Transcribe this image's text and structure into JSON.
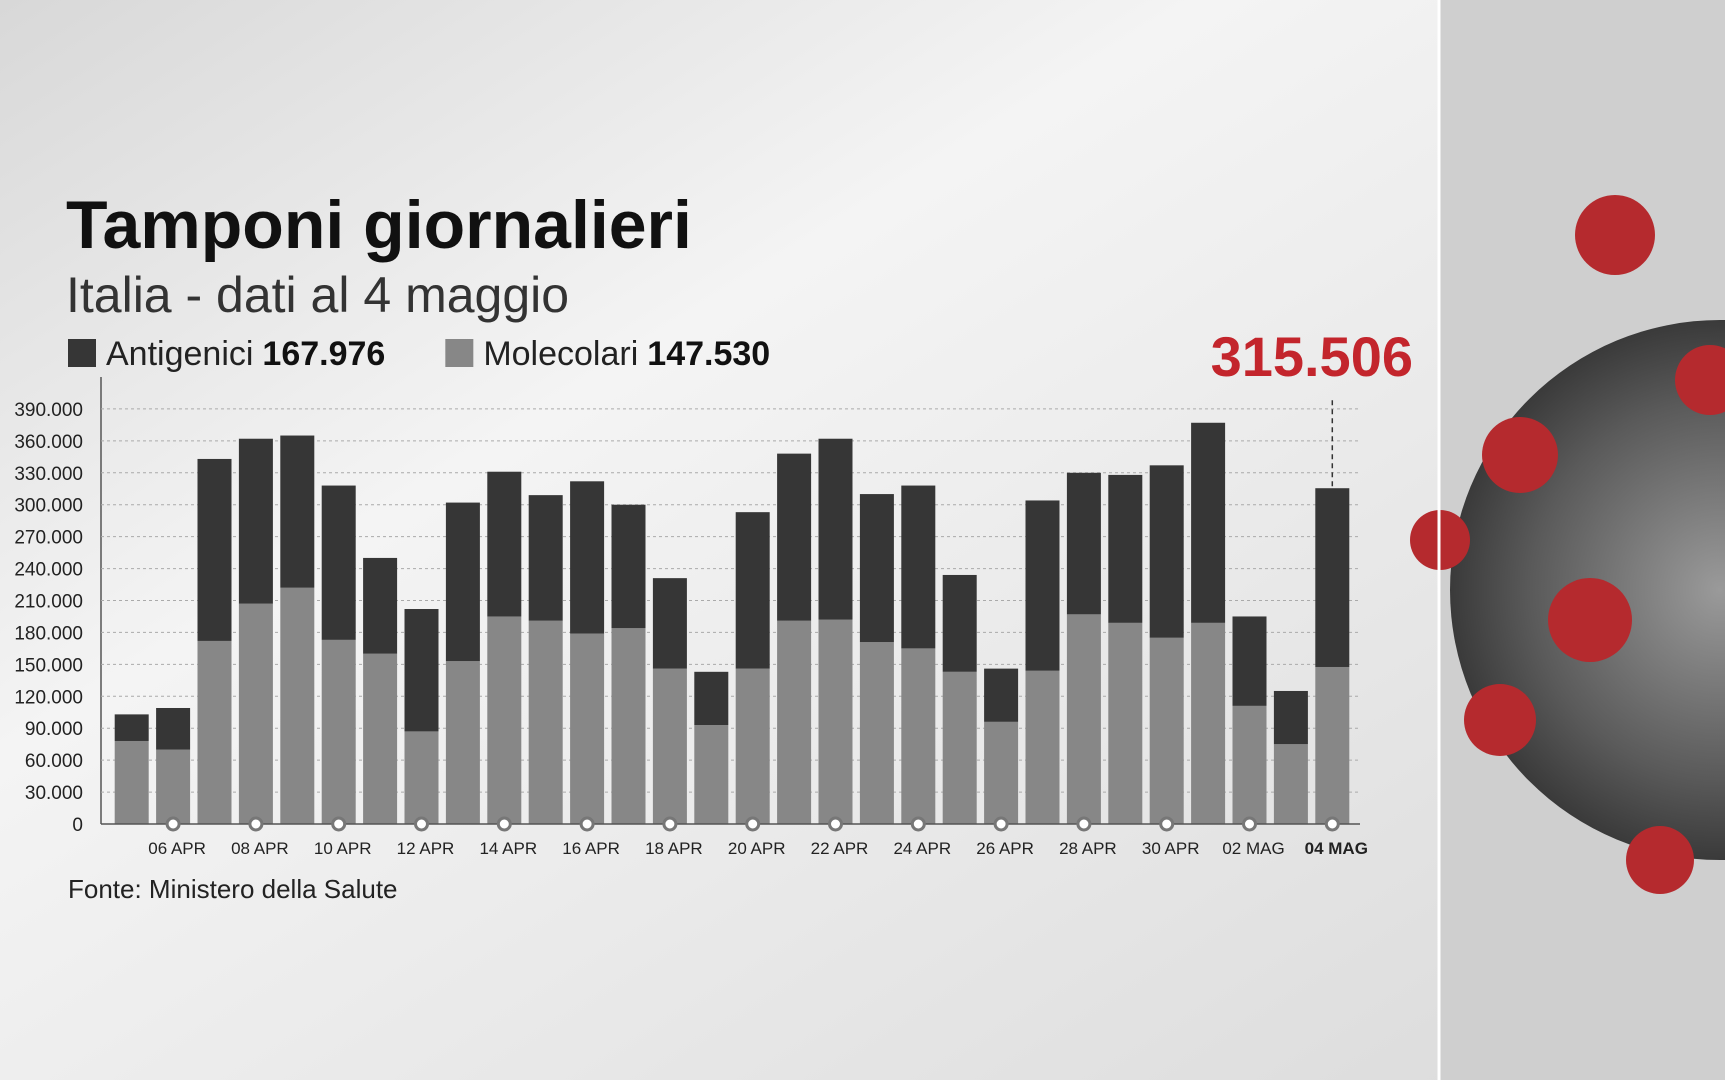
{
  "chart_data": {
    "type": "stacked_bar",
    "title": "Tamponi giornalieri",
    "subtitle": "Italia - dati al 4 maggio",
    "total_label": "315.506",
    "source": "Fonte: Ministero della Salute",
    "categories": [
      null,
      "06 APR",
      null,
      "08 APR",
      null,
      "10 APR",
      null,
      "12 APR",
      null,
      "14 APR",
      null,
      "16 APR",
      null,
      "18 APR",
      null,
      "20 APR",
      null,
      "22 APR",
      null,
      "24 APR",
      null,
      "26 APR",
      null,
      "28 APR",
      null,
      "30 APR",
      null,
      "02 MAG",
      null,
      "04 MAG"
    ],
    "series": [
      {
        "name": "Antigenici",
        "legend_value": "167.976",
        "color": "#363636",
        "values": [
          25000,
          39000,
          171000,
          155000,
          143000,
          145000,
          90000,
          115000,
          149000,
          136000,
          118000,
          143000,
          116000,
          85000,
          50000,
          147000,
          157000,
          170000,
          139000,
          153000,
          91000,
          50000,
          160000,
          133000,
          139000,
          162000,
          188000,
          84000,
          50000,
          167976
        ]
      },
      {
        "name": "Molecolari",
        "legend_value": "147.530",
        "color": "#878787",
        "values": [
          78000,
          70000,
          172000,
          207000,
          222000,
          173000,
          160000,
          87000,
          153000,
          195000,
          191000,
          179000,
          184000,
          146000,
          93000,
          146000,
          191000,
          192000,
          171000,
          165000,
          143000,
          96000,
          144000,
          197000,
          189000,
          175000,
          189000,
          111000,
          75000,
          147530
        ]
      }
    ],
    "ylim": [
      0,
      420000
    ],
    "yticks": [
      0,
      {
        "value": 30000,
        "label": "30.000"
      },
      {
        "value": 60000,
        "label": "60.000"
      },
      {
        "value": 90000,
        "label": "90.000"
      },
      {
        "value": 120000,
        "label": "120.000"
      },
      {
        "value": 150000,
        "label": "150.000"
      },
      {
        "value": 180000,
        "label": "180.000"
      },
      {
        "value": 210000,
        "label": "210.000"
      },
      {
        "value": 240000,
        "label": "240.000"
      },
      {
        "value": 270000,
        "label": "270.000"
      },
      {
        "value": 300000,
        "label": "300.000"
      },
      {
        "value": 330000,
        "label": "330.000"
      },
      {
        "value": 360000,
        "label": "360.000"
      },
      {
        "value": 390000,
        "label": "390.000"
      }
    ],
    "grid": true
  }
}
